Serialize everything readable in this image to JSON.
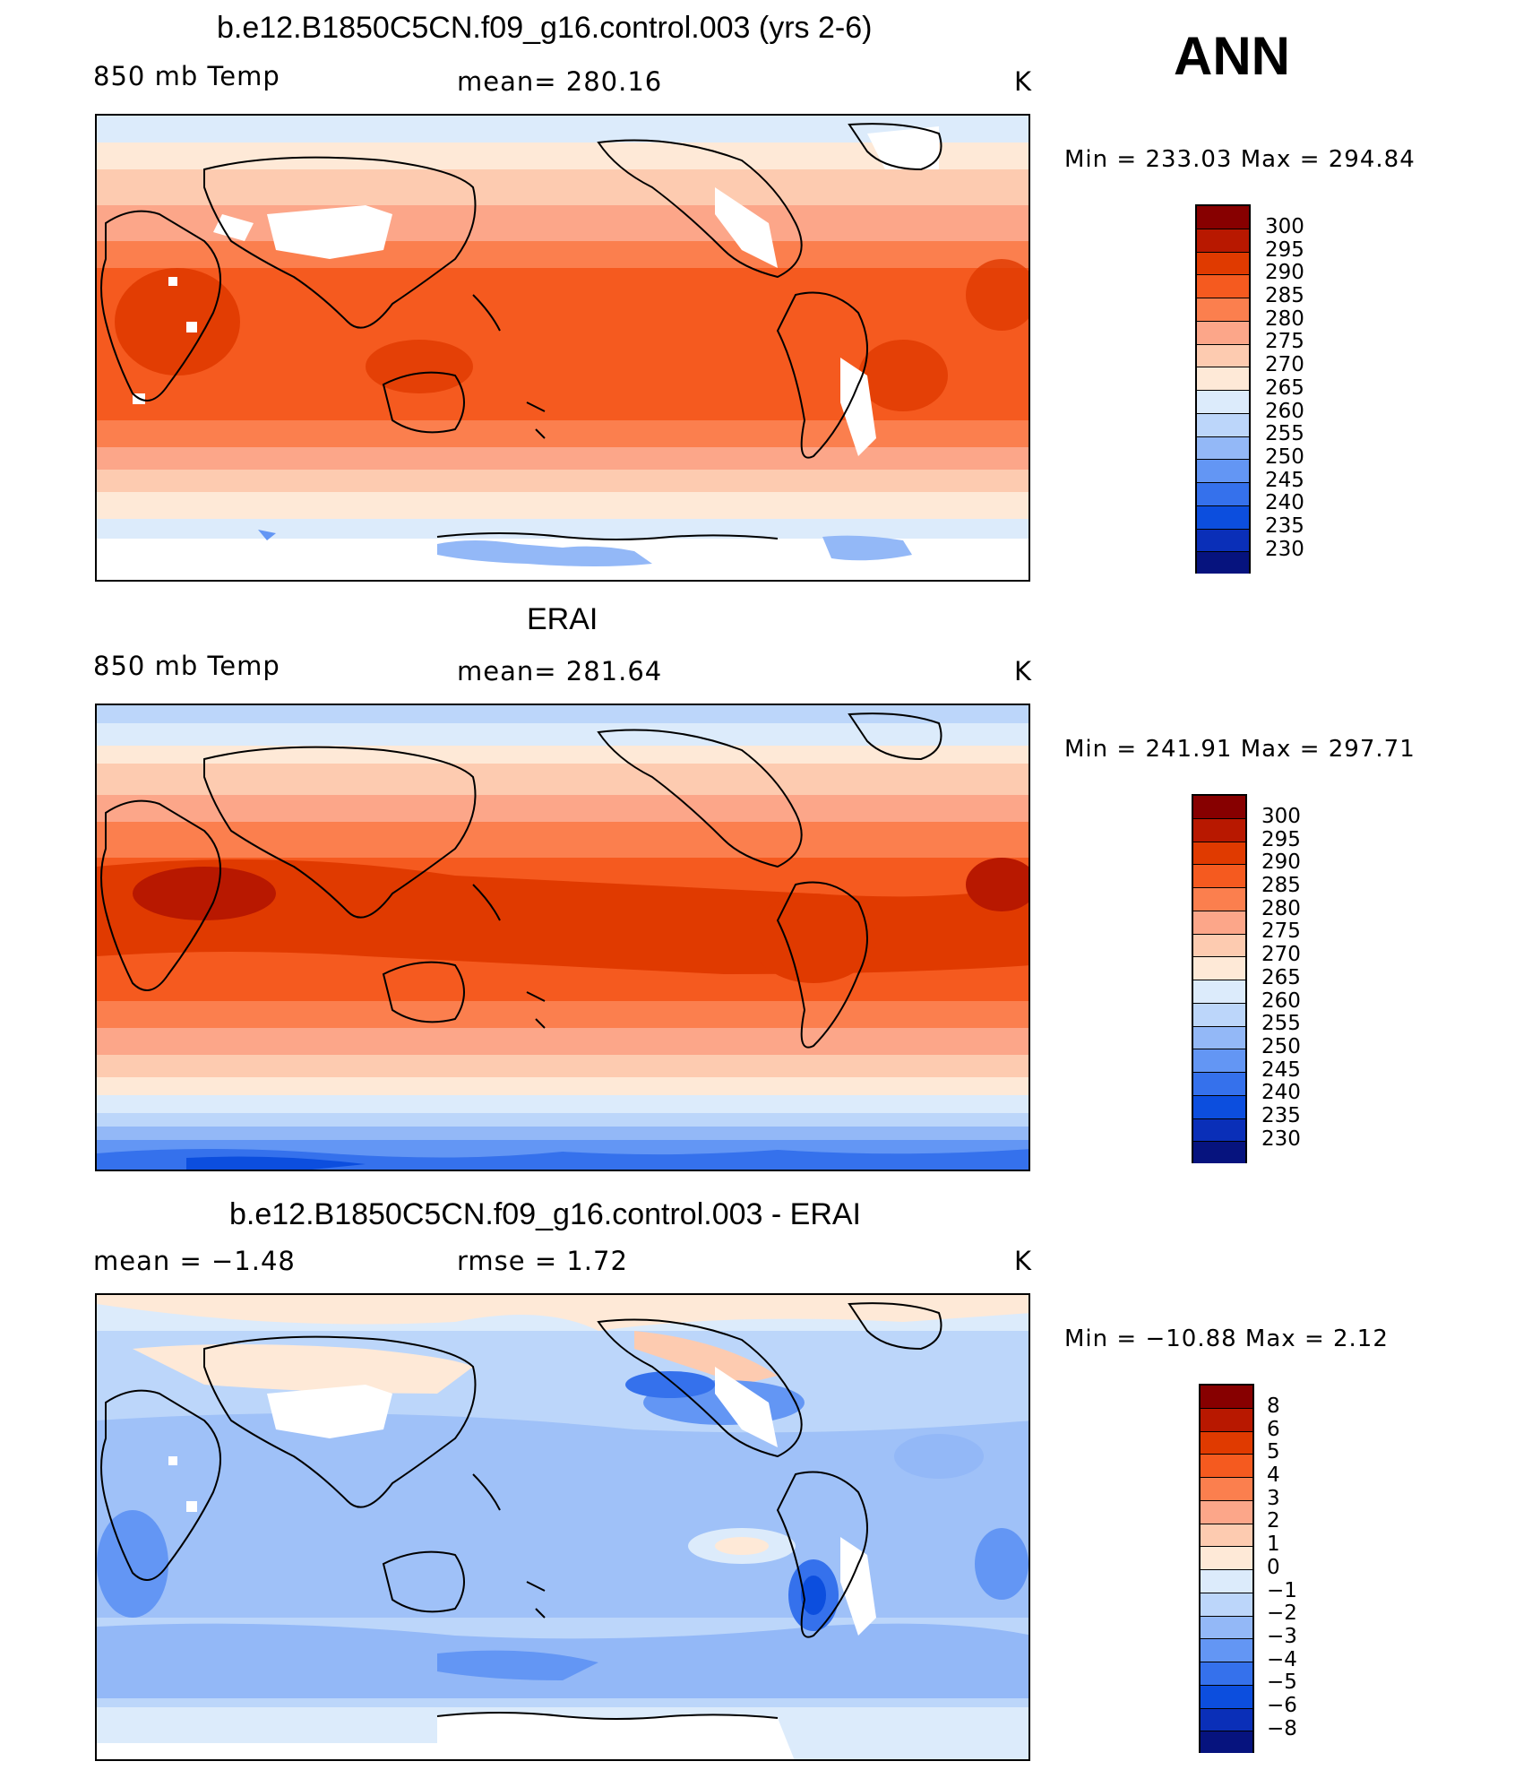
{
  "season": "ANN",
  "panels": [
    {
      "title": "b.e12.B1850C5CN.f09_g16.control.003 (yrs 2-6)",
      "left_label": "850 mb Temp",
      "center_label": "mean=  280.16",
      "units": "K",
      "minmax": "Min  =  233.03  Max  =  294.84",
      "colorbar_labels": [
        "300",
        "295",
        "290",
        "285",
        "280",
        "275",
        "270",
        "265",
        "260",
        "255",
        "250",
        "245",
        "240",
        "235",
        "230"
      ]
    },
    {
      "title": "ERAI",
      "left_label": "850 mb Temp",
      "center_label": "mean=  281.64",
      "units": "K",
      "minmax": "Min  =  241.91  Max  =  297.71",
      "colorbar_labels": [
        "300",
        "295",
        "290",
        "285",
        "280",
        "275",
        "270",
        "265",
        "260",
        "255",
        "250",
        "245",
        "240",
        "235",
        "230"
      ]
    },
    {
      "title": "b.e12.B1850C5CN.f09_g16.control.003 - ERAI",
      "left_label": "mean  =    −1.48",
      "center_label": "rmse  =     1.72",
      "units": "K",
      "minmax": "Min  =  −10.88  Max  =      2.12",
      "colorbar_labels": [
        "8",
        "6",
        "5",
        "4",
        "3",
        "2",
        "1",
        "0",
        "−1",
        "−2",
        "−3",
        "−4",
        "−5",
        "−6",
        "−8"
      ]
    }
  ],
  "colors": {
    "temp_scale": [
      "#870000",
      "#b81800",
      "#e03a00",
      "#f55a1f",
      "#fb7f4e",
      "#fca689",
      "#fdcbb0",
      "#fee9d7",
      "#dcebfb",
      "#bcd6fa",
      "#93b8f7",
      "#6396f4",
      "#3571ec",
      "#0c4ede",
      "#0a2fb8",
      "#06137e"
    ],
    "diff_scale": [
      "#870000",
      "#b81800",
      "#e03a00",
      "#f55a1f",
      "#fb7f4e",
      "#fca689",
      "#fdcbb0",
      "#fee9d7",
      "#dcebfb",
      "#bcd6fa",
      "#93b8f7",
      "#6396f4",
      "#3571ec",
      "#0c4ede",
      "#0a2fb8",
      "#06137e"
    ]
  }
}
